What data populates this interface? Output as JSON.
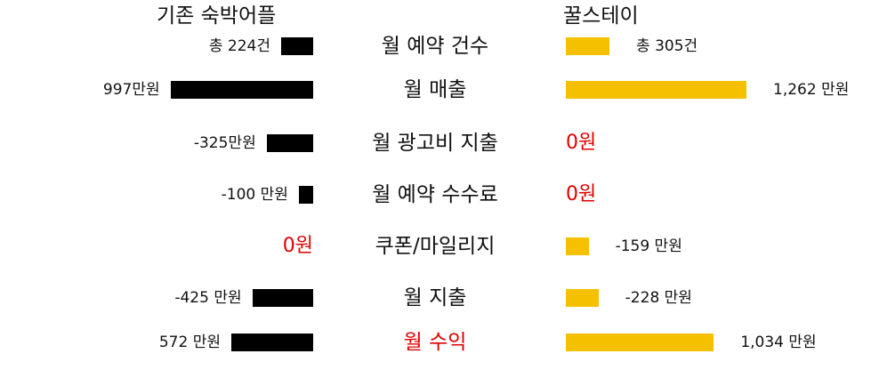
{
  "header": {
    "left": "기존 숙박어플",
    "right": "꿀스테이"
  },
  "colors": {
    "left_bar": "#000000",
    "right_bar": "#f5c000",
    "highlight": "#e00000"
  },
  "chart_data": {
    "type": "bar",
    "orientation": "diverging-horizontal",
    "series": [
      {
        "name": "기존 숙박어플",
        "color": "#000000"
      },
      {
        "name": "꿀스테이",
        "color": "#f5c000"
      }
    ],
    "rows": [
      {
        "label": "월 예약 건수",
        "highlight": false,
        "left": {
          "value": 224,
          "text": "총 224건"
        },
        "right": {
          "value": 305,
          "text": "총 305건"
        }
      },
      {
        "label": "월 매출",
        "highlight": false,
        "left": {
          "value": 997,
          "text": "997만원"
        },
        "right": {
          "value": 1262,
          "text": "1,262 만원"
        }
      },
      {
        "label": "월 광고비 지출",
        "highlight": false,
        "left": {
          "value": -325,
          "text": "-325만원"
        },
        "right": {
          "value": 0,
          "text": "0원",
          "emphasis": true
        }
      },
      {
        "label": "월 예약 수수료",
        "highlight": false,
        "left": {
          "value": -100,
          "text": "-100 만원"
        },
        "right": {
          "value": 0,
          "text": "0원",
          "emphasis": true
        }
      },
      {
        "label": "쿠폰/마일리지",
        "highlight": false,
        "left": {
          "value": 0,
          "text": "0원",
          "emphasis": true
        },
        "right": {
          "value": -159,
          "text": "-159 만원"
        }
      },
      {
        "label": "월 지출",
        "highlight": false,
        "left": {
          "value": -425,
          "text": "-425 만원"
        },
        "right": {
          "value": -228,
          "text": "-228 만원"
        }
      },
      {
        "label": "월 수익",
        "highlight": true,
        "left": {
          "value": 572,
          "text": "572 만원"
        },
        "right": {
          "value": 1034,
          "text": "1,034 만원"
        }
      }
    ]
  }
}
